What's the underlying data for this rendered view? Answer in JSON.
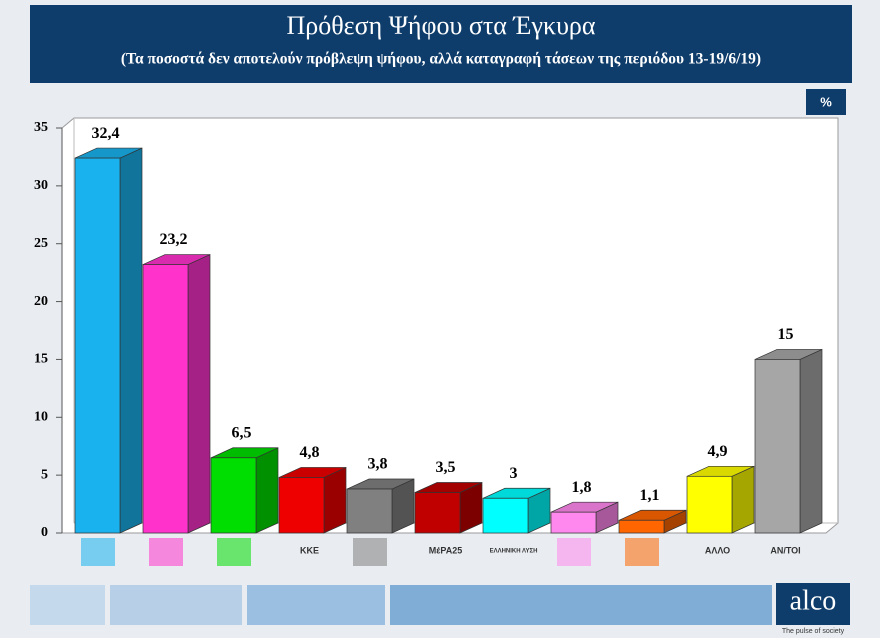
{
  "chart_data": {
    "type": "bar3d",
    "title": "Πρόθεση Ψήφου στα Έγκυρα",
    "subtitle": "(Τα ποσοστά δεν αποτελούν πρόβλεψη ψήφου, αλλά καταγραφή τάσεων της περιόδου 13-19/6/19)",
    "unit": "%",
    "categories": [
      null,
      null,
      null,
      "ΚΚΕ",
      null,
      "ΜέΡΑ25",
      "ΕΛΛΗΝΙΚΗ ΛΥΣΗ",
      null,
      null,
      "ΑΛΛΟ",
      "ΑΝ/ΤΟΙ"
    ],
    "values": [
      32.4,
      23.2,
      6.5,
      4.8,
      3.8,
      3.5,
      3,
      1.8,
      1.1,
      4.9,
      15
    ],
    "value_labels": [
      "32,4",
      "23,2",
      "6,5",
      "4,8",
      "3,8",
      "3,5",
      "3",
      "1,8",
      "1,1",
      "4,9",
      "15"
    ],
    "colors": [
      "#19b2ee",
      "#ff33cc",
      "#00dd00",
      "#ee0000",
      "#808080",
      "#c00000",
      "#00ffff",
      "#ff88ee",
      "#ff6600",
      "#ffff00",
      "#a6a6a6"
    ],
    "ylim": [
      0,
      35
    ],
    "yticks": [
      0,
      5,
      10,
      15,
      20,
      25,
      30,
      35
    ],
    "brand": "alco",
    "tagline": "The pulse of society"
  }
}
